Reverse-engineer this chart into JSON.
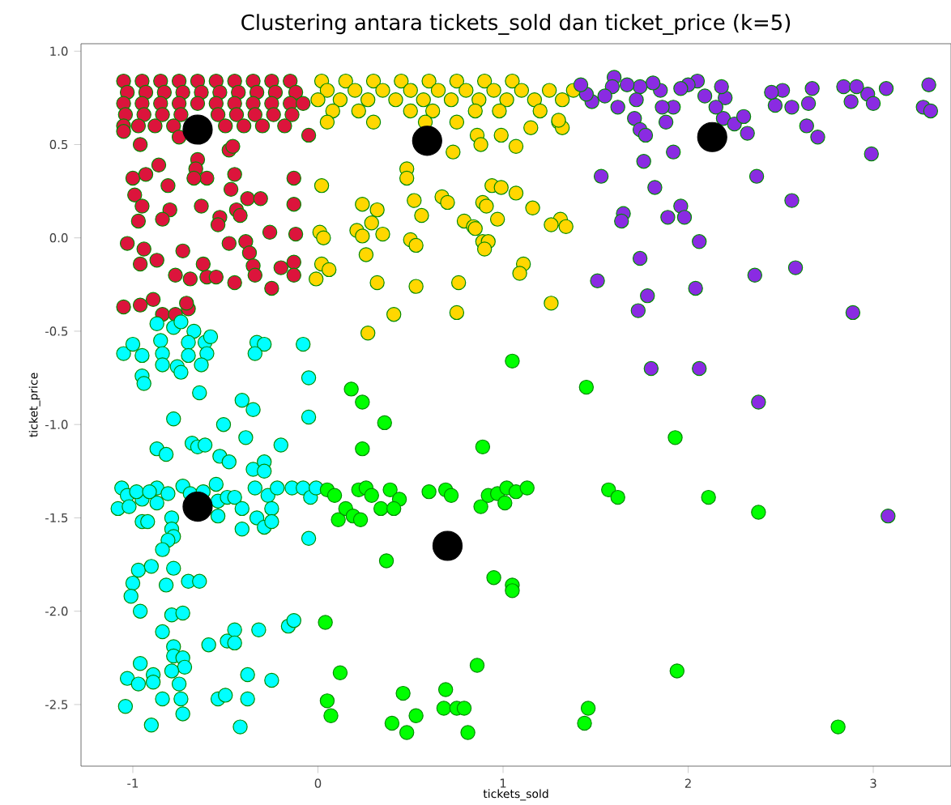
{
  "chart_data": {
    "type": "scatter",
    "title": "Clustering antara tickets_sold dan ticket_price (k=5)",
    "xlabel": "tickets_sold",
    "ylabel": "ticket_price",
    "xlim": [
      -1.28,
      3.42
    ],
    "ylim": [
      -2.83,
      1.04
    ],
    "xticks": [
      -1,
      0,
      1,
      2,
      3
    ],
    "yticks": [
      {
        "value": 1,
        "label": "1.0"
      },
      {
        "value": 0.5,
        "label": "0.5"
      },
      {
        "value": 0,
        "label": "0.0"
      },
      {
        "value": -0.5,
        "label": "-0.5"
      },
      {
        "value": -1,
        "label": "-1.0"
      },
      {
        "value": -1.5,
        "label": "-1.5"
      },
      {
        "value": -2,
        "label": "-2.0"
      },
      {
        "value": -2.5,
        "label": "-2.5"
      }
    ],
    "grid": false,
    "series": [
      {
        "color": "#dc143c",
        "x": [
          -1.05,
          -0.95,
          -0.85,
          -0.75,
          -0.65,
          -0.55,
          -0.45,
          -0.35,
          -0.25,
          -0.15,
          -1.03,
          -0.93,
          -0.83,
          -0.73,
          -0.63,
          -0.53,
          -0.43,
          -0.33,
          -0.23,
          -0.12,
          -1.05,
          -0.95,
          -0.85,
          -0.75,
          -0.65,
          -0.55,
          -0.45,
          -0.35,
          -0.25,
          -0.15,
          -0.08,
          -1.04,
          -0.94,
          -0.84,
          -0.74,
          -0.54,
          -0.44,
          -0.34,
          -0.24,
          -0.14,
          -1.05,
          -0.97,
          -0.88,
          -0.78,
          -0.5,
          -0.4,
          -0.3,
          -1.05,
          -0.96,
          -0.86,
          -1.0,
          -0.93,
          -0.81,
          -0.99,
          -0.95,
          -0.8,
          -0.97,
          -0.84,
          -1.03,
          -0.94,
          -0.96,
          -0.87,
          -0.73,
          -0.77,
          -0.69,
          -0.6,
          -0.55,
          -0.62,
          -1.05,
          -0.96,
          -0.89,
          -0.84,
          -0.77,
          -0.7,
          -0.71,
          -0.75,
          -0.65,
          -0.66,
          -0.6,
          -0.67,
          -0.63,
          -0.48,
          -0.46,
          -0.45,
          -0.47,
          -0.38,
          -0.31,
          -0.44,
          -0.42,
          -0.53,
          -0.54,
          -0.48,
          -0.39,
          -0.37,
          -0.35,
          -0.34,
          -0.45,
          -0.25,
          -0.26,
          -0.2,
          -0.13,
          -0.13,
          -0.12,
          -0.13,
          -0.13,
          -0.18,
          -0.05
        ],
        "values": [
          0.84,
          0.84,
          0.84,
          0.84,
          0.84,
          0.84,
          0.84,
          0.84,
          0.84,
          0.84,
          0.78,
          0.78,
          0.78,
          0.78,
          0.78,
          0.78,
          0.78,
          0.78,
          0.78,
          0.78,
          0.72,
          0.72,
          0.72,
          0.72,
          0.72,
          0.72,
          0.72,
          0.72,
          0.72,
          0.72,
          0.72,
          0.66,
          0.66,
          0.66,
          0.66,
          0.66,
          0.66,
          0.66,
          0.66,
          0.66,
          0.6,
          0.6,
          0.6,
          0.6,
          0.6,
          0.6,
          0.6,
          0.57,
          0.5,
          0.39,
          0.32,
          0.34,
          0.28,
          0.23,
          0.17,
          0.15,
          0.09,
          0.1,
          -0.03,
          -0.06,
          -0.14,
          -0.12,
          -0.07,
          -0.2,
          -0.22,
          -0.21,
          -0.21,
          -0.14,
          -0.37,
          -0.36,
          -0.33,
          -0.41,
          -0.41,
          -0.38,
          -0.35,
          0.54,
          0.42,
          0.37,
          0.32,
          0.32,
          0.17,
          0.47,
          0.49,
          0.34,
          0.26,
          0.21,
          0.21,
          0.15,
          0.12,
          0.11,
          0.07,
          -0.03,
          -0.02,
          -0.08,
          -0.15,
          -0.2,
          -0.24,
          -0.27,
          0.03,
          -0.16,
          0.32,
          0.18,
          0.02,
          -0.13,
          -0.2,
          0.6,
          0.55
        ]
      },
      {
        "color": "#ffd700",
        "x": [
          0.02,
          0.15,
          0.3,
          0.45,
          0.6,
          0.75,
          0.9,
          1.05,
          0.05,
          0.2,
          0.35,
          0.5,
          0.65,
          0.8,
          0.95,
          1.1,
          1.25,
          1.38,
          0.0,
          0.12,
          0.27,
          0.42,
          0.57,
          0.72,
          0.87,
          1.02,
          1.17,
          1.32,
          0.08,
          0.22,
          0.5,
          0.62,
          0.85,
          0.98,
          1.2,
          0.05,
          0.3,
          0.58,
          0.75,
          1.3,
          0.02,
          0.01,
          0.03,
          0.02,
          0.06,
          -0.01,
          0.24,
          0.32,
          0.29,
          0.21,
          0.24,
          0.35,
          0.26,
          0.32,
          0.41,
          0.27,
          0.48,
          0.48,
          0.52,
          0.56,
          0.5,
          0.53,
          0.53,
          0.67,
          0.7,
          0.79,
          0.84,
          0.76,
          0.75,
          0.89,
          0.89,
          0.73,
          0.86,
          0.88,
          0.94,
          0.99,
          1.07,
          0.91,
          0.97,
          1.16,
          0.85,
          1.31,
          1.26,
          1.34,
          0.92,
          0.9,
          1.11,
          1.09,
          1.26,
          1.07,
          1.15,
          0.99,
          1.32,
          1.3
        ],
        "values": [
          0.84,
          0.84,
          0.84,
          0.84,
          0.84,
          0.84,
          0.84,
          0.84,
          0.79,
          0.79,
          0.79,
          0.79,
          0.79,
          0.79,
          0.79,
          0.79,
          0.79,
          0.79,
          0.74,
          0.74,
          0.74,
          0.74,
          0.74,
          0.74,
          0.74,
          0.74,
          0.74,
          0.74,
          0.68,
          0.68,
          0.68,
          0.68,
          0.68,
          0.68,
          0.68,
          0.62,
          0.62,
          0.62,
          0.62,
          0.62,
          0.28,
          0.03,
          0.0,
          -0.14,
          -0.17,
          -0.22,
          0.18,
          0.15,
          0.08,
          0.04,
          0.01,
          0.02,
          -0.09,
          -0.24,
          -0.41,
          -0.51,
          0.37,
          0.32,
          0.2,
          0.12,
          -0.01,
          -0.04,
          -0.26,
          0.22,
          0.19,
          0.09,
          0.06,
          -0.24,
          -0.4,
          -0.02,
          0.19,
          0.46,
          0.55,
          0.5,
          0.28,
          0.27,
          0.24,
          0.17,
          0.1,
          0.16,
          0.05,
          0.1,
          0.07,
          0.06,
          -0.02,
          -0.06,
          -0.14,
          -0.19,
          -0.35,
          0.49,
          0.59,
          0.55,
          0.59,
          0.63
        ]
      },
      {
        "color": "#8a2be2",
        "x": [
          1.71,
          1.74,
          1.77,
          1.88,
          1.92,
          1.76,
          1.53,
          1.82,
          2.37,
          2.56,
          2.64,
          2.7,
          2.99,
          1.65,
          1.64,
          1.96,
          1.98,
          1.89,
          2.06,
          1.74,
          1.51,
          1.78,
          1.73,
          2.04,
          2.36,
          2.58,
          2.89,
          1.8,
          2.06,
          2.38,
          2.32,
          2.19,
          2.25,
          3.08,
          3.3,
          3.27,
          3.31,
          3.07,
          2.97,
          3.0,
          2.88,
          2.84,
          2.91,
          2.65,
          2.67,
          2.51,
          2.47,
          2.56,
          2.45,
          2.3,
          2.2,
          2.18,
          2.09,
          2.05,
          2.0,
          1.96,
          1.92,
          1.85,
          1.81,
          1.74,
          1.72,
          1.67,
          1.6,
          1.59,
          1.62,
          1.55,
          1.48,
          1.45,
          1.42,
          1.86,
          2.15
        ],
        "values": [
          0.64,
          0.58,
          0.55,
          0.62,
          0.46,
          0.41,
          0.33,
          0.27,
          0.33,
          0.2,
          0.6,
          0.54,
          0.45,
          0.13,
          0.09,
          0.17,
          0.11,
          0.11,
          -0.02,
          -0.11,
          -0.23,
          -0.31,
          -0.39,
          -0.27,
          -0.2,
          -0.16,
          -0.4,
          -0.7,
          -0.7,
          -0.88,
          0.56,
          0.64,
          0.61,
          -1.49,
          0.82,
          0.7,
          0.68,
          0.8,
          0.77,
          0.72,
          0.73,
          0.81,
          0.81,
          0.72,
          0.8,
          0.79,
          0.71,
          0.7,
          0.78,
          0.65,
          0.75,
          0.81,
          0.76,
          0.84,
          0.82,
          0.8,
          0.7,
          0.79,
          0.83,
          0.81,
          0.74,
          0.82,
          0.86,
          0.81,
          0.7,
          0.76,
          0.73,
          0.77,
          0.82,
          0.7,
          0.7
        ]
      },
      {
        "color": "#00ffff",
        "x": [
          -1.05,
          -1.0,
          -0.95,
          -0.87,
          -0.85,
          -0.84,
          -0.84,
          -0.78,
          -0.74,
          -0.67,
          -0.7,
          -0.61,
          -0.58,
          -0.6,
          -0.7,
          -0.63,
          -0.76,
          -0.74,
          -0.95,
          -0.94,
          -0.64,
          -0.33,
          -0.29,
          -0.34,
          -0.08,
          -0.05,
          -0.05,
          -0.41,
          -0.35,
          -0.78,
          -0.51,
          -0.39,
          -0.87,
          -0.82,
          -0.68,
          -0.65,
          -0.61,
          -0.53,
          -0.48,
          -0.35,
          -0.29,
          -0.2,
          -0.29,
          -1.06,
          -1.03,
          -1.08,
          -1.02,
          -0.95,
          -0.95,
          -0.92,
          -0.87,
          -0.87,
          -0.81,
          -0.79,
          -0.79,
          -0.78,
          -0.81,
          -0.84,
          -0.73,
          -0.69,
          -0.55,
          -0.54,
          -0.54,
          -0.49,
          -0.45,
          -0.41,
          -0.41,
          -0.34,
          -0.33,
          -0.29,
          -0.27,
          -0.25,
          -0.25,
          -0.22,
          -0.14,
          -0.08,
          -0.04,
          -0.01,
          -0.05,
          -0.98,
          -0.91,
          -0.62,
          -0.97,
          -0.9,
          -1.0,
          -1.01,
          -0.96,
          -0.78,
          -0.82,
          -0.7,
          -0.64,
          -0.79,
          -0.73,
          -0.84,
          -0.78,
          -0.78,
          -0.73,
          -0.72,
          -0.79,
          -0.75,
          -0.74,
          -0.73,
          -0.96,
          -0.89,
          -0.89,
          -1.03,
          -0.97,
          -1.04,
          -0.84,
          -0.9,
          -0.59,
          -0.49,
          -0.45,
          -0.45,
          -0.32,
          -0.16,
          -0.13,
          -0.54,
          -0.5,
          -0.38,
          -0.38,
          -0.25,
          -0.42
        ],
        "values": [
          -0.62,
          -0.57,
          -0.63,
          -0.46,
          -0.55,
          -0.62,
          -0.68,
          -0.48,
          -0.45,
          -0.5,
          -0.56,
          -0.56,
          -0.53,
          -0.62,
          -0.63,
          -0.68,
          -0.69,
          -0.72,
          -0.74,
          -0.78,
          -0.83,
          -0.56,
          -0.57,
          -0.62,
          -0.57,
          -0.75,
          -0.96,
          -0.87,
          -0.92,
          -0.97,
          -1.0,
          -1.07,
          -1.13,
          -1.16,
          -1.1,
          -1.12,
          -1.11,
          -1.17,
          -1.2,
          -1.24,
          -1.2,
          -1.11,
          -1.25,
          -1.34,
          -1.38,
          -1.45,
          -1.44,
          -1.4,
          -1.52,
          -1.52,
          -1.34,
          -1.42,
          -1.37,
          -1.5,
          -1.56,
          -1.6,
          -1.62,
          -1.67,
          -1.33,
          -1.37,
          -1.32,
          -1.41,
          -1.49,
          -1.39,
          -1.39,
          -1.45,
          -1.56,
          -1.34,
          -1.5,
          -1.55,
          -1.38,
          -1.45,
          -1.52,
          -1.34,
          -1.34,
          -1.34,
          -1.39,
          -1.34,
          -1.61,
          -1.36,
          -1.36,
          -1.36,
          -1.78,
          -1.76,
          -1.85,
          -1.92,
          -2.0,
          -1.77,
          -1.86,
          -1.84,
          -1.84,
          -2.02,
          -2.01,
          -2.11,
          -2.19,
          -2.24,
          -2.25,
          -2.3,
          -2.32,
          -2.39,
          -2.47,
          -2.55,
          -2.28,
          -2.34,
          -2.38,
          -2.36,
          -2.39,
          -2.51,
          -2.47,
          -2.61,
          -2.18,
          -2.16,
          -2.1,
          -2.17,
          -2.1,
          -2.08,
          -2.05,
          -2.47,
          -2.45,
          -2.34,
          -2.47,
          -2.37,
          -2.62
        ]
      },
      {
        "color": "#00ff00",
        "x": [
          0.05,
          0.09,
          0.11,
          0.15,
          0.19,
          0.23,
          0.22,
          0.26,
          0.29,
          0.34,
          0.39,
          0.44,
          0.41,
          0.37,
          0.24,
          0.36,
          0.6,
          0.69,
          0.72,
          0.89,
          0.88,
          0.04,
          0.12,
          0.05,
          0.07,
          0.46,
          0.4,
          0.48,
          0.53,
          0.69,
          0.68,
          0.75,
          0.79,
          0.81,
          0.86,
          0.18,
          1.05,
          1.45,
          1.93,
          0.92,
          0.97,
          1.02,
          1.07,
          1.01,
          1.13,
          1.57,
          1.62,
          2.11,
          2.38,
          0.95,
          1.05,
          1.05,
          1.94,
          1.46,
          1.44,
          2.81,
          0.24
        ],
        "values": [
          -1.35,
          -1.38,
          -1.51,
          -1.45,
          -1.49,
          -1.51,
          -1.35,
          -1.34,
          -1.38,
          -1.45,
          -1.35,
          -1.4,
          -1.45,
          -1.73,
          -1.13,
          -0.99,
          -1.36,
          -1.35,
          -1.38,
          -1.12,
          -1.44,
          -2.06,
          -2.33,
          -2.48,
          -2.56,
          -2.44,
          -2.6,
          -2.65,
          -2.56,
          -2.42,
          -2.52,
          -2.52,
          -2.52,
          -2.65,
          -2.29,
          -0.81,
          -0.66,
          -0.8,
          -1.07,
          -1.38,
          -1.37,
          -1.34,
          -1.36,
          -1.42,
          -1.34,
          -1.35,
          -1.39,
          -1.39,
          -1.47,
          -1.82,
          -1.86,
          -1.89,
          -2.32,
          -2.52,
          -2.6,
          -2.62,
          -0.88
        ]
      },
      {
        "color": "#000000",
        "x": [
          -0.65,
          0.59,
          2.13,
          -0.65,
          0.7
        ],
        "values": [
          0.58,
          0.52,
          0.54,
          -1.44,
          -1.65
        ]
      }
    ]
  }
}
